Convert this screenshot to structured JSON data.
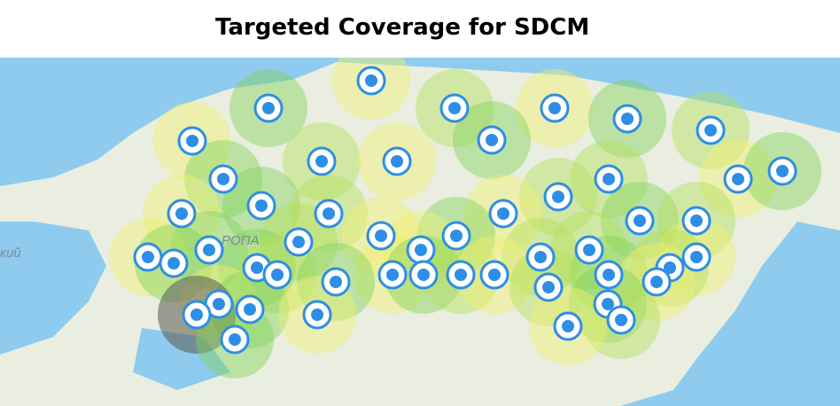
{
  "header": {
    "title": "Targeted Coverage for SDCM"
  },
  "map": {
    "labels": [
      "РОПА",
      "кий"
    ]
  }
}
